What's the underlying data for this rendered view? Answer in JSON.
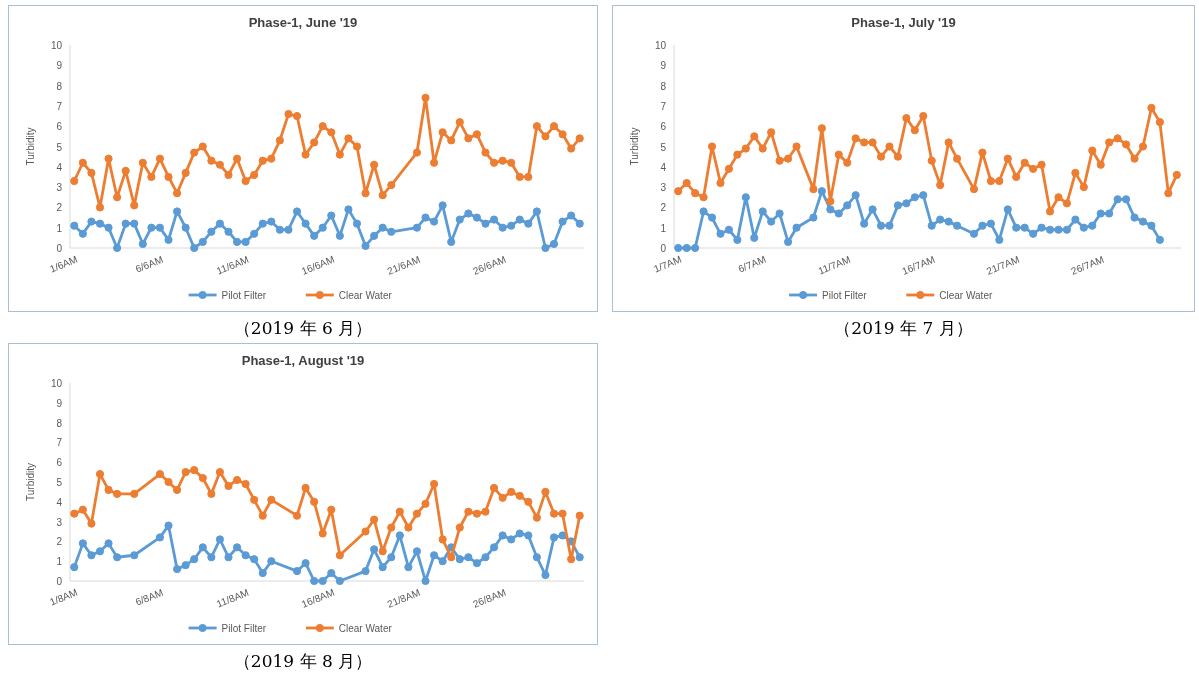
{
  "chart_data": [
    {
      "type": "line",
      "title": "Phase-1, June '19",
      "ylabel": "Turbidity",
      "ylim": [
        0,
        10
      ],
      "yticks": [
        0,
        1,
        2,
        3,
        4,
        5,
        6,
        7,
        8,
        9,
        10
      ],
      "categories": [
        "1/6AM",
        null,
        null,
        null,
        null,
        null,
        null,
        null,
        null,
        null,
        "6/6AM",
        null,
        null,
        null,
        null,
        null,
        null,
        null,
        null,
        null,
        "11/6AM",
        null,
        null,
        null,
        null,
        null,
        null,
        null,
        null,
        null,
        "16/6AM",
        null,
        null,
        null,
        null,
        null,
        null,
        null,
        null,
        null,
        "21/6AM",
        null,
        null,
        null,
        null,
        null,
        null,
        null,
        null,
        null,
        "26/6AM",
        null,
        null,
        null,
        null,
        null,
        null,
        null,
        null,
        null
      ],
      "marker": "circle",
      "legend": "bottom",
      "annotations": [
        "（2019 年 6 月）"
      ],
      "series": [
        {
          "name": "Pilot Filter",
          "color": "#5b9bd5",
          "values": [
            1.1,
            0.7,
            1.3,
            1.2,
            1.0,
            0,
            1.2,
            1.2,
            0.2,
            1.0,
            1.0,
            0.4,
            1.8,
            1.0,
            0,
            0.3,
            0.8,
            1.2,
            0.8,
            0.3,
            0.3,
            0.7,
            1.2,
            1.3,
            0.9,
            0.9,
            1.8,
            1.2,
            0.6,
            1.0,
            1.6,
            0.6,
            1.9,
            1.2,
            0.1,
            0.6,
            1.0,
            0.8,
            null,
            null,
            1.0,
            1.5,
            1.3,
            2.1,
            0.3,
            1.4,
            1.7,
            1.5,
            1.2,
            1.4,
            1.0,
            1.1,
            1.4,
            1.2,
            1.8,
            0,
            0.2,
            1.3,
            1.6,
            1.2
          ]
        },
        {
          "name": "Clear Water",
          "color": "#ed7d31",
          "values": [
            3.3,
            4.2,
            3.7,
            2.0,
            4.4,
            2.5,
            3.8,
            2.1,
            4.2,
            3.5,
            4.4,
            3.5,
            2.7,
            3.7,
            4.7,
            5.0,
            4.3,
            4.1,
            3.6,
            4.4,
            3.3,
            3.6,
            4.3,
            4.4,
            5.3,
            6.6,
            6.5,
            4.6,
            5.2,
            6.0,
            5.7,
            4.6,
            5.4,
            5.0,
            2.7,
            4.1,
            2.6,
            3.1,
            null,
            null,
            4.7,
            7.4,
            4.2,
            5.7,
            5.3,
            6.2,
            5.4,
            5.6,
            4.7,
            4.2,
            4.3,
            4.2,
            3.5,
            3.5,
            6.0,
            5.5,
            6.0,
            5.6,
            4.9,
            5.4
          ]
        }
      ]
    },
    {
      "type": "line",
      "title": "Phase-1, July '19",
      "ylabel": "Turbidity",
      "ylim": [
        0,
        10
      ],
      "yticks": [
        0,
        1,
        2,
        3,
        4,
        5,
        6,
        7,
        8,
        9,
        10
      ],
      "categories": [
        "1/7AM",
        null,
        null,
        null,
        null,
        null,
        null,
        null,
        null,
        null,
        "6/7AM",
        null,
        null,
        null,
        null,
        null,
        null,
        null,
        null,
        null,
        "11/7AM",
        null,
        null,
        null,
        null,
        null,
        null,
        null,
        null,
        null,
        "16/7AM",
        null,
        null,
        null,
        null,
        null,
        null,
        null,
        null,
        null,
        "21/7AM",
        null,
        null,
        null,
        null,
        null,
        null,
        null,
        null,
        null,
        "26/7AM",
        null,
        null,
        null,
        null,
        null,
        null,
        null,
        null,
        null
      ],
      "marker": "circle",
      "legend": "bottom",
      "annotations": [
        "（2019 年 7 月）"
      ],
      "series": [
        {
          "name": "Pilot Filter",
          "color": "#5b9bd5",
          "values": [
            0,
            0,
            0,
            1.8,
            1.5,
            0.7,
            0.9,
            0.4,
            2.5,
            0.5,
            1.8,
            1.3,
            1.7,
            0.3,
            1.0,
            null,
            1.5,
            2.8,
            1.9,
            1.7,
            2.1,
            2.6,
            1.2,
            1.9,
            1.1,
            1.1,
            2.1,
            2.2,
            2.5,
            2.6,
            1.1,
            1.4,
            1.3,
            1.1,
            null,
            0.7,
            1.1,
            1.2,
            0.4,
            1.9,
            1.0,
            1.0,
            0.7,
            1.0,
            0.9,
            0.9,
            0.9,
            1.4,
            1.0,
            1.1,
            1.7,
            1.7,
            2.4,
            2.4,
            1.5,
            1.3,
            1.1,
            0.4,
            null,
            null
          ]
        },
        {
          "name": "Clear Water",
          "color": "#ed7d31",
          "values": [
            2.8,
            3.2,
            2.7,
            2.5,
            5.0,
            3.2,
            3.9,
            4.6,
            4.9,
            5.5,
            4.9,
            5.7,
            4.3,
            4.4,
            5.0,
            null,
            2.9,
            5.9,
            2.3,
            4.6,
            4.2,
            5.4,
            5.2,
            5.2,
            4.5,
            5.0,
            4.5,
            6.4,
            5.8,
            6.5,
            4.3,
            3.1,
            5.2,
            4.4,
            null,
            2.9,
            4.7,
            3.3,
            3.3,
            4.4,
            3.5,
            4.2,
            3.9,
            4.1,
            1.8,
            2.5,
            2.2,
            3.7,
            3.0,
            4.8,
            4.1,
            5.2,
            5.4,
            5.1,
            4.4,
            5.0,
            6.9,
            6.2,
            2.7,
            3.6
          ]
        }
      ]
    },
    {
      "type": "line",
      "title": "Phase-1, August '19",
      "ylabel": "Turbidity",
      "ylim": [
        0,
        10
      ],
      "yticks": [
        0,
        1,
        2,
        3,
        4,
        5,
        6,
        7,
        8,
        9,
        10
      ],
      "categories": [
        "1/8AM",
        null,
        null,
        null,
        null,
        null,
        null,
        null,
        null,
        null,
        "6/8AM",
        null,
        null,
        null,
        null,
        null,
        null,
        null,
        null,
        null,
        "11/8AM",
        null,
        null,
        null,
        null,
        null,
        null,
        null,
        null,
        null,
        "16/8AM",
        null,
        null,
        null,
        null,
        null,
        null,
        null,
        null,
        null,
        "21/8AM",
        null,
        null,
        null,
        null,
        null,
        null,
        null,
        null,
        null,
        "26/8AM",
        null,
        null,
        null,
        null,
        null,
        null,
        null,
        null,
        null
      ],
      "marker": "circle",
      "legend": "bottom",
      "annotations": [
        "（2019 年 8 月）"
      ],
      "series": [
        {
          "name": "Pilot Filter",
          "color": "#5b9bd5",
          "values": [
            0.7,
            1.9,
            1.3,
            1.5,
            1.9,
            1.2,
            null,
            1.3,
            null,
            null,
            2.2,
            2.8,
            0.6,
            0.8,
            1.1,
            1.7,
            1.2,
            2.1,
            1.2,
            1.7,
            1.3,
            1.1,
            0.4,
            1.0,
            null,
            null,
            0.5,
            0.9,
            0,
            0,
            0.4,
            0,
            null,
            null,
            0.5,
            1.6,
            0.7,
            1.2,
            2.3,
            0.7,
            1.5,
            0,
            1.3,
            1.0,
            1.7,
            1.1,
            1.2,
            0.9,
            1.2,
            1.7,
            2.3,
            2.1,
            2.4,
            2.3,
            1.2,
            0.3,
            2.2,
            2.3,
            2.0,
            1.2
          ]
        },
        {
          "name": "Clear Water",
          "color": "#ed7d31",
          "values": [
            3.4,
            3.6,
            2.9,
            5.4,
            4.6,
            4.4,
            null,
            4.4,
            null,
            null,
            5.4,
            5.0,
            4.6,
            5.5,
            5.6,
            5.2,
            4.4,
            5.5,
            4.8,
            5.1,
            4.9,
            4.1,
            3.3,
            4.1,
            null,
            null,
            3.3,
            4.7,
            4.0,
            2.4,
            3.6,
            1.3,
            null,
            null,
            2.5,
            3.1,
            1.5,
            2.7,
            3.5,
            2.7,
            3.4,
            3.9,
            4.9,
            2.1,
            1.2,
            2.7,
            3.5,
            3.4,
            3.5,
            4.7,
            4.2,
            4.5,
            4.3,
            4.0,
            3.2,
            4.5,
            3.4,
            3.4,
            1.1,
            3.3
          ]
        }
      ]
    }
  ]
}
